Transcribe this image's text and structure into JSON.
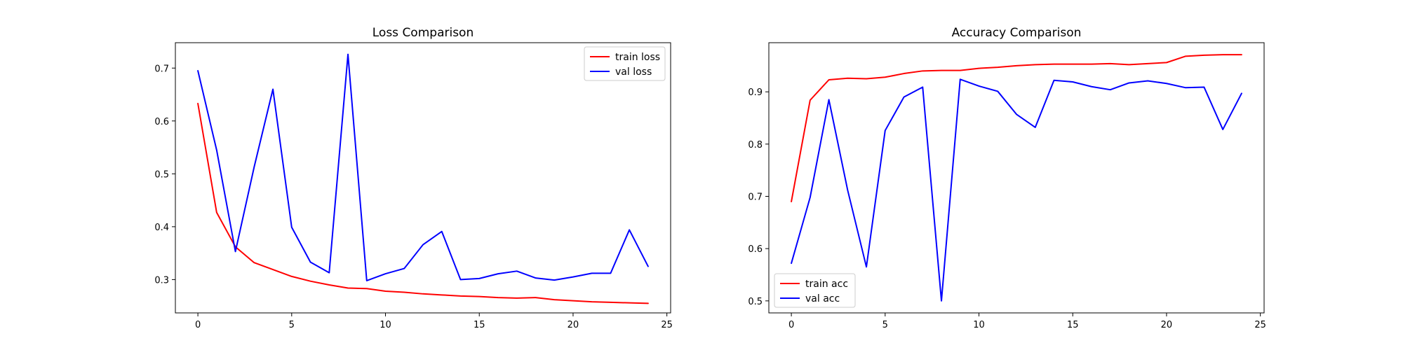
{
  "chart_data": [
    {
      "type": "line",
      "title": "Loss Comparison",
      "xlabel": "",
      "ylabel": "",
      "xlim": [
        -1.2,
        25.2
      ],
      "ylim": [
        0.237,
        0.748
      ],
      "xticks": [
        0,
        5,
        10,
        15,
        20,
        25
      ],
      "yticks": [
        0.3,
        0.4,
        0.5,
        0.6,
        0.7
      ],
      "grid": false,
      "legend": "top-right",
      "x": [
        0,
        1,
        2,
        3,
        4,
        5,
        6,
        7,
        8,
        9,
        10,
        11,
        12,
        13,
        14,
        15,
        16,
        17,
        18,
        19,
        20,
        21,
        22,
        23,
        24
      ],
      "series": [
        {
          "name": "train loss",
          "color": "#ff0000",
          "values": [
            0.633,
            0.427,
            0.362,
            0.332,
            0.319,
            0.306,
            0.297,
            0.29,
            0.284,
            0.283,
            0.278,
            0.276,
            0.273,
            0.271,
            0.269,
            0.268,
            0.266,
            0.265,
            0.266,
            0.262,
            0.26,
            0.258,
            0.257,
            0.256,
            0.255
          ]
        },
        {
          "name": "val loss",
          "color": "#0000ff",
          "values": [
            0.695,
            0.545,
            0.353,
            0.513,
            0.66,
            0.399,
            0.333,
            0.313,
            0.726,
            0.298,
            0.311,
            0.321,
            0.366,
            0.391,
            0.3,
            0.302,
            0.311,
            0.316,
            0.303,
            0.299,
            0.305,
            0.312,
            0.312,
            0.394,
            0.325
          ]
        }
      ]
    },
    {
      "type": "line",
      "title": "Accuracy Comparison",
      "xlabel": "",
      "ylabel": "",
      "xlim": [
        -1.2,
        25.2
      ],
      "ylim": [
        0.477,
        0.994
      ],
      "xticks": [
        0,
        5,
        10,
        15,
        20,
        25
      ],
      "yticks": [
        0.5,
        0.6,
        0.7,
        0.8,
        0.9
      ],
      "grid": false,
      "legend": "bottom-left",
      "x": [
        0,
        1,
        2,
        3,
        4,
        5,
        6,
        7,
        8,
        9,
        10,
        11,
        12,
        13,
        14,
        15,
        16,
        17,
        18,
        19,
        20,
        21,
        22,
        23,
        24
      ],
      "series": [
        {
          "name": "train acc",
          "color": "#ff0000",
          "values": [
            0.69,
            0.884,
            0.923,
            0.926,
            0.925,
            0.928,
            0.935,
            0.94,
            0.941,
            0.941,
            0.945,
            0.947,
            0.95,
            0.952,
            0.953,
            0.953,
            0.953,
            0.954,
            0.952,
            0.954,
            0.956,
            0.968,
            0.97,
            0.971,
            0.971
          ]
        },
        {
          "name": "val acc",
          "color": "#0000ff",
          "values": [
            0.572,
            0.698,
            0.885,
            0.712,
            0.565,
            0.826,
            0.89,
            0.909,
            0.5,
            0.924,
            0.911,
            0.901,
            0.857,
            0.832,
            0.922,
            0.919,
            0.91,
            0.904,
            0.917,
            0.921,
            0.916,
            0.908,
            0.909,
            0.828,
            0.897
          ]
        }
      ]
    }
  ]
}
